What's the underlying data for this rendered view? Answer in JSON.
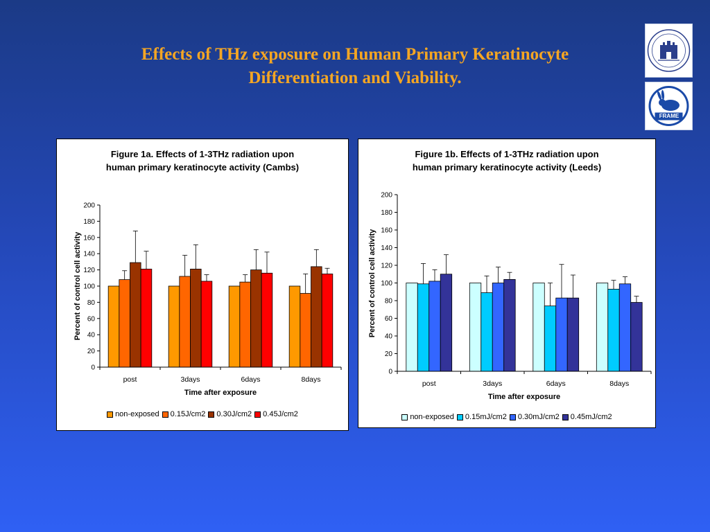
{
  "slide": {
    "title_line1": "Effects of THz exposure on Human Primary Keratinocyte",
    "title_line2": "Differentiation and Viability."
  },
  "logos": [
    {
      "name": "university-crest-icon",
      "color": "#2b3f8c"
    },
    {
      "name": "frame-rabbit-logo-icon",
      "text": "FRAME",
      "color": "#1a4aa8"
    }
  ],
  "chart_data": [
    {
      "type": "bar",
      "title_line1": "Figure 1a. Effects of 1-3THz radiation upon",
      "title_line2": "human primary keratinocyte activity (Cambs)",
      "xlabel": "Time after exposure",
      "ylabel": "Percent of control cell activity",
      "ylim": [
        0,
        200
      ],
      "yticks": [
        0,
        20,
        40,
        60,
        80,
        100,
        120,
        140,
        160,
        180,
        200
      ],
      "categories": [
        "post",
        "3days",
        "6days",
        "8days"
      ],
      "legend_position": "bottom",
      "series": [
        {
          "name": "non-exposed",
          "color": "#ff9900",
          "values": [
            100,
            100,
            100,
            100
          ],
          "errors": [
            0,
            0,
            0,
            0
          ]
        },
        {
          "name": "0.15J/cm2",
          "color": "#ff6600",
          "values": [
            108,
            112,
            105,
            91
          ],
          "errors": [
            11,
            26,
            9,
            24
          ]
        },
        {
          "name": "0.30J/cm2",
          "color": "#993300",
          "values": [
            129,
            121,
            120,
            124
          ],
          "errors": [
            39,
            30,
            25,
            21
          ]
        },
        {
          "name": "0.45J/cm2",
          "color": "#ff0000",
          "values": [
            121,
            106,
            116,
            115
          ],
          "errors": [
            22,
            8,
            26,
            7
          ]
        }
      ]
    },
    {
      "type": "bar",
      "title_line1": "Figure 1b. Effects of 1-3THz radiation upon",
      "title_line2": "human primary keratinocyte activity (Leeds)",
      "xlabel": "Time after exposure",
      "ylabel": "Percent of control cell activity",
      "ylim": [
        0,
        200
      ],
      "yticks": [
        0,
        20,
        40,
        60,
        80,
        100,
        120,
        140,
        160,
        180,
        200
      ],
      "categories": [
        "post",
        "3days",
        "6days",
        "8days"
      ],
      "legend_position": "bottom",
      "series": [
        {
          "name": "non-exposed",
          "color": "#ccffff",
          "values": [
            100,
            100,
            100,
            100
          ],
          "errors": [
            0,
            0,
            0,
            0
          ]
        },
        {
          "name": "0.15mJ/cm2",
          "color": "#00ccff",
          "values": [
            99,
            89,
            74,
            93
          ],
          "errors": [
            23,
            19,
            26,
            10
          ]
        },
        {
          "name": "0.30mJ/cm2",
          "color": "#3366ff",
          "values": [
            102,
            100,
            83,
            99
          ],
          "errors": [
            13,
            18,
            38,
            8
          ]
        },
        {
          "name": "0.45mJ/cm2",
          "color": "#333399",
          "values": [
            110,
            104,
            83,
            78
          ],
          "errors": [
            22,
            8,
            26,
            7
          ]
        }
      ]
    }
  ]
}
